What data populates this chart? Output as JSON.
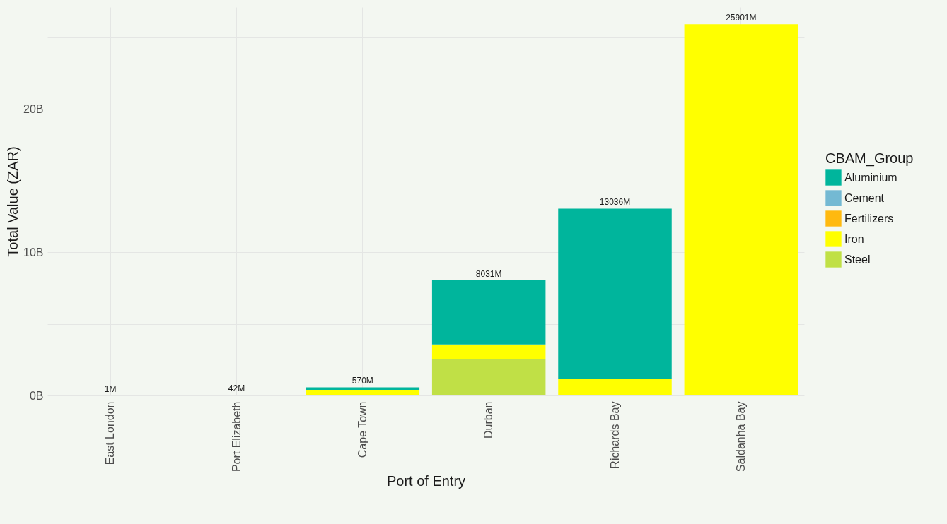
{
  "chart_data": {
    "type": "bar",
    "stacked": true,
    "xlabel": "Port of Entry",
    "ylabel": "Total Value (ZAR)",
    "legend_title": "CBAM_Group",
    "legend": "right",
    "grid": true,
    "categories": [
      "East London",
      "Port Elizabeth",
      "Cape Town",
      "Durban",
      "Richards Bay",
      "Saldanha Bay"
    ],
    "series": [
      {
        "name": "Steel",
        "color": "#c0e046",
        "values": [
          null,
          0.042,
          null,
          2.51,
          null,
          null
        ]
      },
      {
        "name": "Iron",
        "color": "#ffff00",
        "values": [
          null,
          null,
          0.4,
          1.05,
          1.13,
          25.901
        ]
      },
      {
        "name": "Fertilizers",
        "color": "#ffb90f",
        "values": [
          null,
          null,
          null,
          null,
          null,
          null
        ]
      },
      {
        "name": "Cement",
        "color": "#74b9d3",
        "values": [
          null,
          null,
          null,
          null,
          null,
          null
        ]
      },
      {
        "name": "Aluminium",
        "color": "#00b59c",
        "values": [
          null,
          null,
          0.17,
          4.471,
          11.906,
          null
        ]
      }
    ],
    "totals": [
      "1M",
      "42M",
      "570M",
      "8031M",
      "13036M",
      "25901M"
    ],
    "ylim": [
      0,
      27.1
    ],
    "yticks": [
      {
        "value": 0,
        "label": "0B"
      },
      {
        "value": 5,
        "label": null
      },
      {
        "value": 10,
        "label": "10B"
      },
      {
        "value": 15,
        "label": null
      },
      {
        "value": 20,
        "label": "20B"
      },
      {
        "value": 25,
        "label": null
      }
    ]
  }
}
